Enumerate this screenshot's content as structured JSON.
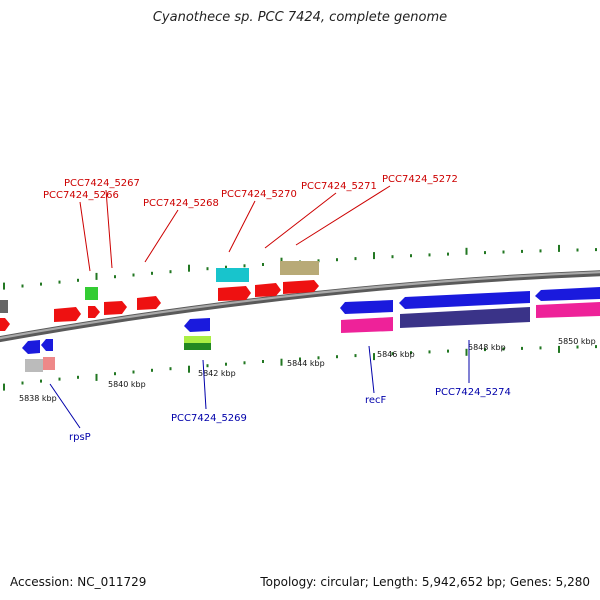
{
  "title": "Cyanothece sp. PCC 7424, complete genome",
  "footer": {
    "accession": "Accession: NC_011729",
    "summary": "Topology: circular; Length: 5,942,652 bp; Genes: 5,280"
  },
  "colors": {
    "red": "#ee1111",
    "blue": "#1a1add",
    "magenta": "#ee2299",
    "navy": "#3a3388",
    "cyan": "#18c4cc",
    "tan": "#b8aa77",
    "green": "#33cc33",
    "lime": "#aaee44",
    "darkgreen": "#228822",
    "gray": "#bbbbbb",
    "pink": "#ee8888",
    "backbone": "#888888",
    "tick": "#227722",
    "label_red": "#cc0000",
    "label_blue": "#0000aa"
  },
  "scale_labels": [
    "5838 kbp",
    "5840 kbp",
    "5842 kbp",
    "5844 kbp",
    "5846 kbp",
    "5848 kbp",
    "5850 kbp"
  ],
  "gene_labels": {
    "top": [
      "PCC7424_5267",
      "PCC7424_5266",
      "PCC7424_5268",
      "PCC7424_5270",
      "PCC7424_5271",
      "PCC7424_5272"
    ],
    "bottom": [
      "rpsP",
      "PCC7424_5269",
      "recF",
      "PCC7424_5274"
    ]
  }
}
